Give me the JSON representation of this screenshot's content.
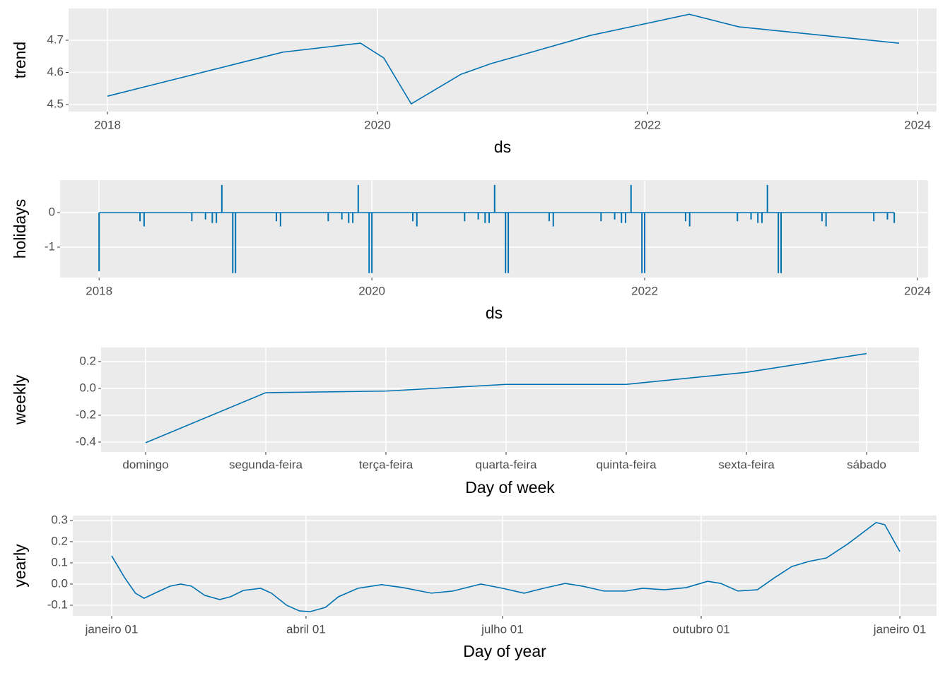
{
  "chart_data": [
    {
      "type": "line",
      "x_label": "ds",
      "y_label": "trend",
      "color": "#0072B2",
      "x": [
        2018.0,
        2019.298,
        2019.874,
        2020.047,
        2020.25,
        2020.618,
        2020.838,
        2021.576,
        2022.309,
        2022.675,
        2023.864
      ],
      "values": [
        4.526,
        4.663,
        4.691,
        4.645,
        4.502,
        4.594,
        4.627,
        4.715,
        4.781,
        4.742,
        4.691
      ],
      "xlim": [
        2017.712,
        2024.141
      ],
      "xticks": [
        2018,
        2020,
        2022,
        2024
      ],
      "ylim": [
        4.478,
        4.799
      ],
      "yticks": [
        4.5,
        4.6,
        4.7
      ]
    },
    {
      "type": "bar",
      "x_label": "ds",
      "y_label": "holidays",
      "color": "#0072B2",
      "x": [
        2018.0,
        2018.3,
        2018.33,
        2018.68,
        2018.78,
        2018.83,
        2018.86,
        2018.9,
        2018.98,
        2019.0,
        2019.3,
        2019.33,
        2019.68,
        2019.78,
        2019.83,
        2019.86,
        2019.9,
        2019.98,
        2020.0,
        2020.3,
        2020.33,
        2020.68,
        2020.78,
        2020.83,
        2020.86,
        2020.9,
        2020.98,
        2021.0,
        2021.3,
        2021.33,
        2021.68,
        2021.78,
        2021.83,
        2021.86,
        2021.9,
        2021.98,
        2022.0,
        2022.3,
        2022.33,
        2022.68,
        2022.78,
        2022.83,
        2022.86,
        2022.9,
        2022.98,
        2023.0,
        2023.3,
        2023.33,
        2023.68,
        2023.78,
        2023.83
      ],
      "values": [
        -1.7,
        -0.25,
        -0.4,
        -0.25,
        -0.2,
        -0.3,
        -0.3,
        0.8,
        -1.75,
        -1.75,
        -0.25,
        -0.4,
        -0.25,
        -0.2,
        -0.3,
        -0.3,
        0.8,
        -1.75,
        -1.75,
        -0.25,
        -0.4,
        -0.25,
        -0.2,
        -0.3,
        -0.3,
        0.8,
        -1.75,
        -1.75,
        -0.25,
        -0.4,
        -0.25,
        -0.2,
        -0.3,
        -0.3,
        0.8,
        -1.75,
        -1.75,
        -0.25,
        -0.4,
        -0.25,
        -0.2,
        -0.3,
        -0.3,
        0.8,
        -1.75,
        -1.75,
        -0.25,
        -0.4,
        -0.25,
        -0.2,
        -0.3
      ],
      "xlim": [
        2017.714,
        2024.078
      ],
      "xticks": [
        2018,
        2020,
        2022,
        2024
      ],
      "ylim": [
        -1.88,
        0.94
      ],
      "yticks": [
        -1,
        0
      ]
    },
    {
      "type": "line",
      "x_label": "Day of week",
      "y_label": "weekly",
      "color": "#0072B2",
      "categories": [
        "domingo",
        "segunda-feira",
        "terça-feira",
        "quarta-feira",
        "quinta-feira",
        "sexta-feira",
        "sábado"
      ],
      "values": [
        -0.405,
        -0.032,
        -0.02,
        0.03,
        0.03,
        0.12,
        0.26
      ],
      "ylim": [
        -0.474,
        0.305
      ],
      "yticks": [
        -0.4,
        -0.2,
        {
          "value": 0,
          "label": "0.0"
        },
        0.2
      ]
    },
    {
      "type": "line",
      "x_label": "Day of year",
      "y_label": "yearly",
      "color": "#0072B2",
      "x": [
        0,
        6,
        11,
        15,
        20,
        27,
        32,
        37,
        43,
        50,
        55,
        61,
        69,
        74,
        81,
        87,
        92,
        99,
        105,
        114,
        125,
        135,
        148,
        158,
        171,
        181,
        191,
        200,
        210,
        218,
        228,
        238,
        246,
        256,
        266,
        276,
        282,
        290,
        299,
        307,
        315,
        323,
        331,
        341,
        354,
        358,
        365
      ],
      "values": [
        0.133,
        0.03,
        -0.043,
        -0.067,
        -0.043,
        -0.01,
        0,
        -0.01,
        -0.053,
        -0.073,
        -0.06,
        -0.03,
        -0.02,
        -0.043,
        -0.1,
        -0.127,
        -0.13,
        -0.11,
        -0.06,
        -0.02,
        -0.003,
        -0.017,
        -0.043,
        -0.033,
        0,
        -0.02,
        -0.043,
        -0.02,
        0.003,
        -0.01,
        -0.033,
        -0.033,
        -0.02,
        -0.027,
        -0.017,
        0.013,
        0.003,
        -0.033,
        -0.027,
        0.03,
        0.083,
        0.107,
        0.123,
        0.19,
        0.29,
        0.28,
        0.153
      ],
      "xlim": [
        -18,
        382
      ],
      "xticks": [
        {
          "value": 0,
          "label": "janeiro 01"
        },
        {
          "value": 90,
          "label": "abril 01"
        },
        {
          "value": 181,
          "label": "julho 01"
        },
        {
          "value": 273,
          "label": "outubro 01"
        },
        {
          "value": 365,
          "label": "janeiro 01"
        }
      ],
      "ylim": [
        -0.15,
        0.323
      ],
      "yticks": [
        -0.1,
        {
          "value": 0,
          "label": "0.0"
        },
        0.1,
        0.2,
        0.3
      ]
    }
  ]
}
